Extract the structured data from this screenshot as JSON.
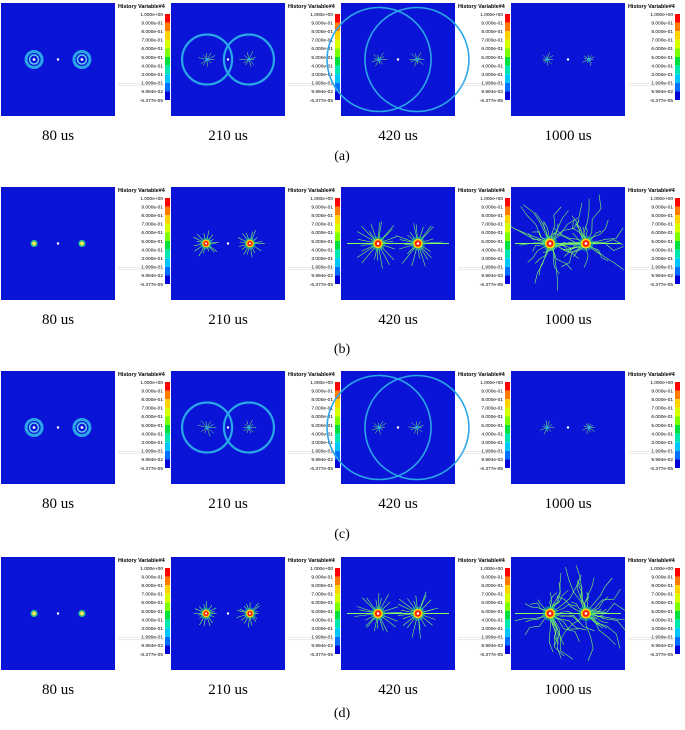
{
  "legend": {
    "title": "History Variable#4",
    "values": [
      "1.000e+00",
      "9.000e-01",
      "8.000e-01",
      "7.000e-01",
      "6.000e-01",
      "5.000e-01",
      "4.000e-01",
      "3.000e-01",
      "1.999e-01",
      "9.994e-02",
      "-6.377e-05"
    ],
    "colors": [
      "#ff0000",
      "#ff7a00",
      "#ffd200",
      "#d8ff00",
      "#7cff00",
      "#00e040",
      "#00e8b0",
      "#00c8ff",
      "#0070ff",
      "#0000d8"
    ]
  },
  "colors": {
    "field": "#0a14d6",
    "wave": "#2aa6e8",
    "crack": "#7cff60",
    "tip_core": "#ff1a00",
    "tip_ring": "#ffd200"
  },
  "rows": [
    {
      "label": "(a)",
      "panels": [
        {
          "time": "80 us",
          "kind": "wave",
          "stage": 1
        },
        {
          "time": "210 us",
          "kind": "wave",
          "stage": 2
        },
        {
          "time": "420 us",
          "kind": "wave",
          "stage": 3
        },
        {
          "time": "1000 us",
          "kind": "wave",
          "stage": 4
        }
      ]
    },
    {
      "label": "(b)",
      "panels": [
        {
          "time": "80 us",
          "kind": "crack",
          "stage": 1
        },
        {
          "time": "210 us",
          "kind": "crack",
          "stage": 2
        },
        {
          "time": "420 us",
          "kind": "crack",
          "stage": 3
        },
        {
          "time": "1000 us",
          "kind": "crack",
          "stage": 4
        }
      ]
    },
    {
      "label": "(c)",
      "panels": [
        {
          "time": "80 us",
          "kind": "wave",
          "stage": 1
        },
        {
          "time": "210 us",
          "kind": "wave",
          "stage": 2
        },
        {
          "time": "420 us",
          "kind": "wave",
          "stage": 3
        },
        {
          "time": "1000 us",
          "kind": "wave",
          "stage": 4
        }
      ]
    },
    {
      "label": "(d)",
      "panels": [
        {
          "time": "80 us",
          "kind": "crack",
          "stage": 1
        },
        {
          "time": "210 us",
          "kind": "crack",
          "stage": 2
        },
        {
          "time": "420 us",
          "kind": "crack",
          "stage": 3
        },
        {
          "time": "1000 us",
          "kind": "crack",
          "stage": 4
        }
      ]
    }
  ]
}
